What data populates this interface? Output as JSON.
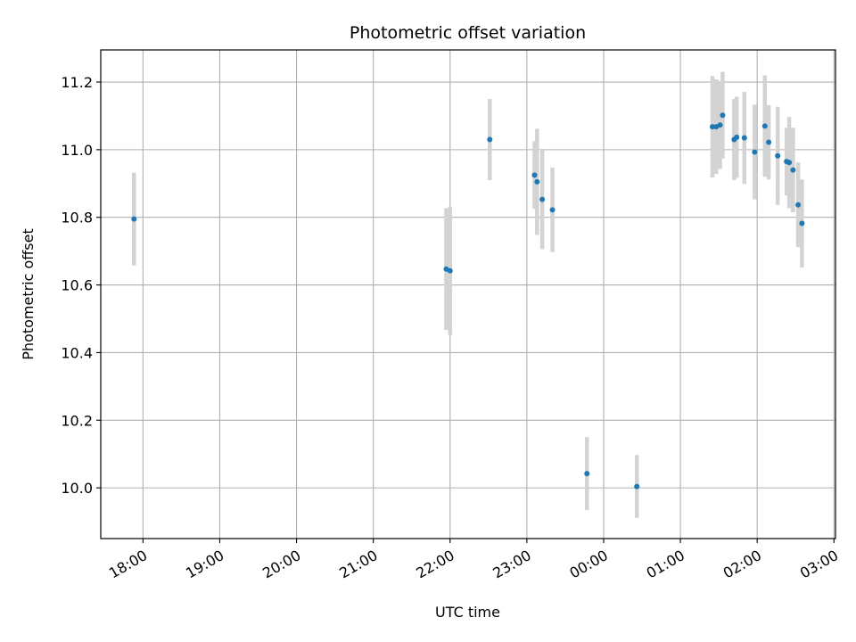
{
  "chart_data": {
    "type": "scatter",
    "title": "Photometric offset variation",
    "xlabel": "UTC time",
    "ylabel": "Photometric offset",
    "x_unit": "hours",
    "x_ticks": [
      "18:00",
      "19:00",
      "20:00",
      "21:00",
      "22:00",
      "23:00",
      "00:00",
      "01:00",
      "02:00",
      "03:00"
    ],
    "x_tick_values": [
      18,
      19,
      20,
      21,
      22,
      23,
      24,
      25,
      26,
      27
    ],
    "xlim": [
      17.45,
      27.02
    ],
    "y_ticks": [
      "10.0",
      "10.2",
      "10.4",
      "10.6",
      "10.8",
      "11.0",
      "11.2"
    ],
    "y_tick_values": [
      10.0,
      10.2,
      10.4,
      10.6,
      10.8,
      11.0,
      11.2
    ],
    "ylim": [
      9.85,
      11.295
    ],
    "grid": true,
    "marker_color": "#1f77b4",
    "errorbar_color": "#d3d3d3",
    "points": [
      {
        "time": "17:53",
        "x": 17.883,
        "y": 10.795,
        "err": 0.137
      },
      {
        "time": "21:57",
        "x": 21.95,
        "y": 10.647,
        "err": 0.18
      },
      {
        "time": "22:00",
        "x": 22.0,
        "y": 10.642,
        "err": 0.19
      },
      {
        "time": "22:31",
        "x": 22.517,
        "y": 11.03,
        "err": 0.12
      },
      {
        "time": "23:06",
        "x": 23.1,
        "y": 10.925,
        "err": 0.1
      },
      {
        "time": "23:08",
        "x": 23.133,
        "y": 10.905,
        "err": 0.157
      },
      {
        "time": "23:12",
        "x": 23.2,
        "y": 10.853,
        "err": 0.147
      },
      {
        "time": "23:20",
        "x": 23.333,
        "y": 10.822,
        "err": 0.125
      },
      {
        "time": "23:47",
        "x": 23.783,
        "y": 10.042,
        "err": 0.108
      },
      {
        "time": "00:26",
        "x": 24.433,
        "y": 10.004,
        "err": 0.093
      },
      {
        "time": "01:25",
        "x": 25.417,
        "y": 11.068,
        "err": 0.15
      },
      {
        "time": "01:28",
        "x": 25.467,
        "y": 11.068,
        "err": 0.14
      },
      {
        "time": "01:31",
        "x": 25.517,
        "y": 11.073,
        "err": 0.13
      },
      {
        "time": "01:33",
        "x": 25.55,
        "y": 11.102,
        "err": 0.128
      },
      {
        "time": "01:42",
        "x": 25.7,
        "y": 11.03,
        "err": 0.12
      },
      {
        "time": "01:44",
        "x": 25.733,
        "y": 11.037,
        "err": 0.12
      },
      {
        "time": "01:50",
        "x": 25.833,
        "y": 11.035,
        "err": 0.136
      },
      {
        "time": "01:58",
        "x": 25.967,
        "y": 10.993,
        "err": 0.14
      },
      {
        "time": "02:06",
        "x": 26.1,
        "y": 11.07,
        "err": 0.15
      },
      {
        "time": "02:09",
        "x": 26.15,
        "y": 11.022,
        "err": 0.11
      },
      {
        "time": "02:16",
        "x": 26.267,
        "y": 10.982,
        "err": 0.145
      },
      {
        "time": "02:23",
        "x": 26.383,
        "y": 10.965,
        "err": 0.1
      },
      {
        "time": "02:25",
        "x": 26.417,
        "y": 10.962,
        "err": 0.135
      },
      {
        "time": "02:28",
        "x": 26.467,
        "y": 10.94,
        "err": 0.125
      },
      {
        "time": "02:32",
        "x": 26.533,
        "y": 10.837,
        "err": 0.125
      },
      {
        "time": "02:35",
        "x": 26.583,
        "y": 10.782,
        "err": 0.13
      }
    ]
  }
}
